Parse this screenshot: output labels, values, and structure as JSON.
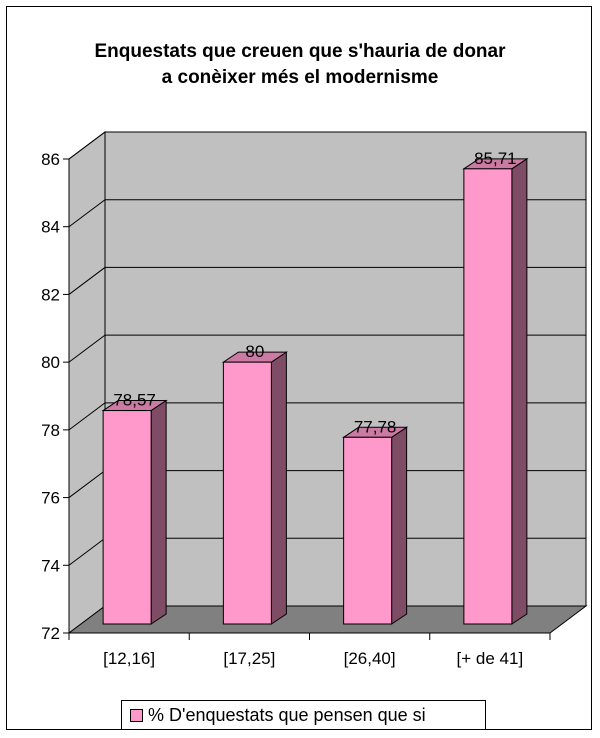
{
  "chart_data": {
    "type": "bar",
    "title": "Enquestats  que creuen que s'hauria de donar\na conèixer més el modernisme",
    "categories": [
      "[12,16]",
      "[17,25]",
      "[26,40]",
      "[+ de 41]"
    ],
    "series": [
      {
        "name": "% D'enquestats que pensen que si",
        "values": [
          78.57,
          80,
          77.78,
          85.71
        ],
        "labels": [
          "78,57",
          "80",
          "77,78",
          "85,71"
        ]
      }
    ],
    "ylim": [
      72,
      86
    ],
    "yticks": [
      72,
      74,
      76,
      78,
      80,
      82,
      84,
      86
    ],
    "grid": true,
    "legend_position": "bottom",
    "colors": {
      "bar_front": "#ff99cc",
      "bar_side": "#7f4c66",
      "bar_top": "#cc7aa3",
      "wall": "#c0c0c0",
      "floor": "#808080"
    }
  }
}
